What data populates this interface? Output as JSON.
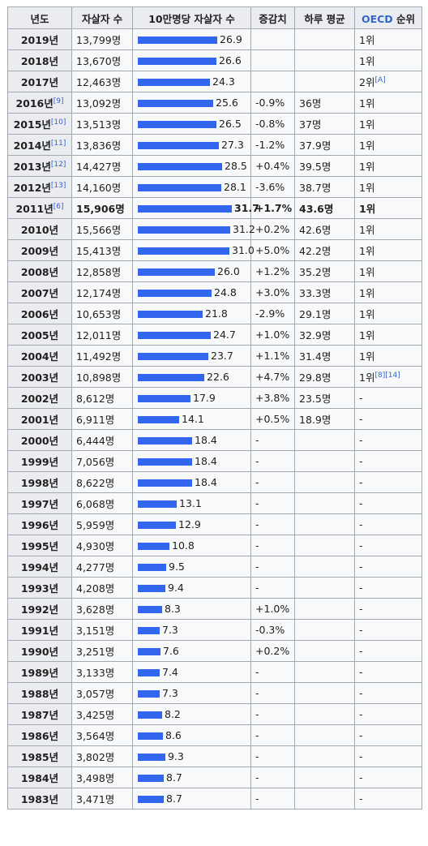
{
  "header": {
    "year": "년도",
    "count": "자살자 수",
    "rate": "10만명당 자살자 수",
    "change": "증감치",
    "daily": "하루 평균",
    "oecd_link": "OECD",
    "oecd_suffix": " 순위"
  },
  "colors": {
    "bar": "#3366ee",
    "link": "#3366cc",
    "header_bg": "#eaecf0",
    "cell_bg": "#f8f9fa",
    "border": "#a2a9b1"
  },
  "rows": [
    {
      "year": "2019년",
      "ref": "",
      "count": "13,799명",
      "rate": "26.9",
      "rate_value": 26.9,
      "change": "",
      "daily": "",
      "oecd": "1위",
      "oecd_ref": ""
    },
    {
      "year": "2018년",
      "ref": "",
      "count": "13,670명",
      "rate": "26.6",
      "rate_value": 26.6,
      "change": "",
      "daily": "",
      "oecd": "1위",
      "oecd_ref": ""
    },
    {
      "year": "2017년",
      "ref": "",
      "count": "12,463명",
      "rate": "24.3",
      "rate_value": 24.3,
      "change": "",
      "daily": "",
      "oecd": "2위",
      "oecd_ref": "[A]"
    },
    {
      "year": "2016년",
      "ref": "[9]",
      "count": "13,092명",
      "rate": "25.6",
      "rate_value": 25.6,
      "change": "-0.9%",
      "daily": "36명",
      "oecd": "1위",
      "oecd_ref": ""
    },
    {
      "year": "2015년",
      "ref": "[10]",
      "count": "13,513명",
      "rate": "26.5",
      "rate_value": 26.5,
      "change": "-0.8%",
      "daily": "37명",
      "oecd": "1위",
      "oecd_ref": ""
    },
    {
      "year": "2014년",
      "ref": "[11]",
      "count": "13,836명",
      "rate": "27.3",
      "rate_value": 27.3,
      "change": "-1.2%",
      "daily": "37.9명",
      "oecd": "1위",
      "oecd_ref": ""
    },
    {
      "year": "2013년",
      "ref": "[12]",
      "count": "14,427명",
      "rate": "28.5",
      "rate_value": 28.5,
      "change": "+0.4%",
      "daily": "39.5명",
      "oecd": "1위",
      "oecd_ref": ""
    },
    {
      "year": "2012년",
      "ref": "[13]",
      "count": "14,160명",
      "rate": "28.1",
      "rate_value": 28.1,
      "change": "-3.6%",
      "daily": "38.7명",
      "oecd": "1위",
      "oecd_ref": ""
    },
    {
      "year": "2011년",
      "ref": "[6]",
      "count": "15,906명",
      "rate": "31.7",
      "rate_value": 31.7,
      "change": "+1.7%",
      "daily": "43.6명",
      "oecd": "1위",
      "oecd_ref": "",
      "highlight": true
    },
    {
      "year": "2010년",
      "ref": "",
      "count": "15,566명",
      "rate": "31.2",
      "rate_value": 31.2,
      "change": "+0.2%",
      "daily": "42.6명",
      "oecd": "1위",
      "oecd_ref": ""
    },
    {
      "year": "2009년",
      "ref": "",
      "count": "15,413명",
      "rate": "31.0",
      "rate_value": 31.0,
      "change": "+5.0%",
      "daily": "42.2명",
      "oecd": "1위",
      "oecd_ref": ""
    },
    {
      "year": "2008년",
      "ref": "",
      "count": "12,858명",
      "rate": "26.0",
      "rate_value": 26.0,
      "change": "+1.2%",
      "daily": "35.2명",
      "oecd": "1위",
      "oecd_ref": ""
    },
    {
      "year": "2007년",
      "ref": "",
      "count": "12,174명",
      "rate": "24.8",
      "rate_value": 24.8,
      "change": "+3.0%",
      "daily": "33.3명",
      "oecd": "1위",
      "oecd_ref": ""
    },
    {
      "year": "2006년",
      "ref": "",
      "count": "10,653명",
      "rate": "21.8",
      "rate_value": 21.8,
      "change": "-2.9%",
      "daily": "29.1명",
      "oecd": "1위",
      "oecd_ref": ""
    },
    {
      "year": "2005년",
      "ref": "",
      "count": "12,011명",
      "rate": "24.7",
      "rate_value": 24.7,
      "change": "+1.0%",
      "daily": "32.9명",
      "oecd": "1위",
      "oecd_ref": ""
    },
    {
      "year": "2004년",
      "ref": "",
      "count": "11,492명",
      "rate": "23.7",
      "rate_value": 23.7,
      "change": "+1.1%",
      "daily": "31.4명",
      "oecd": "1위",
      "oecd_ref": ""
    },
    {
      "year": "2003년",
      "ref": "",
      "count": "10,898명",
      "rate": "22.6",
      "rate_value": 22.6,
      "change": "+4.7%",
      "daily": "29.8명",
      "oecd": "1위",
      "oecd_ref": "[8][14]"
    },
    {
      "year": "2002년",
      "ref": "",
      "count": "8,612명",
      "rate": "17.9",
      "rate_value": 17.9,
      "change": "+3.8%",
      "daily": "23.5명",
      "oecd": "-",
      "oecd_ref": ""
    },
    {
      "year": "2001년",
      "ref": "",
      "count": "6,911명",
      "rate": "14.1",
      "rate_value": 14.1,
      "change": "+0.5%",
      "daily": "18.9명",
      "oecd": "-",
      "oecd_ref": ""
    },
    {
      "year": "2000년",
      "ref": "",
      "count": "6,444명",
      "rate": "18.4",
      "rate_value": 18.4,
      "change": "-",
      "daily": "",
      "oecd": "-",
      "oecd_ref": ""
    },
    {
      "year": "1999년",
      "ref": "",
      "count": "7,056명",
      "rate": "18.4",
      "rate_value": 18.4,
      "change": "-",
      "daily": "",
      "oecd": "-",
      "oecd_ref": ""
    },
    {
      "year": "1998년",
      "ref": "",
      "count": "8,622명",
      "rate": "18.4",
      "rate_value": 18.4,
      "change": "-",
      "daily": "",
      "oecd": "-",
      "oecd_ref": ""
    },
    {
      "year": "1997년",
      "ref": "",
      "count": "6,068명",
      "rate": "13.1",
      "rate_value": 13.1,
      "change": "-",
      "daily": "",
      "oecd": "-",
      "oecd_ref": ""
    },
    {
      "year": "1996년",
      "ref": "",
      "count": "5,959명",
      "rate": "12.9",
      "rate_value": 12.9,
      "change": "-",
      "daily": "",
      "oecd": "-",
      "oecd_ref": ""
    },
    {
      "year": "1995년",
      "ref": "",
      "count": "4,930명",
      "rate": "10.8",
      "rate_value": 10.8,
      "change": "-",
      "daily": "",
      "oecd": "-",
      "oecd_ref": ""
    },
    {
      "year": "1994년",
      "ref": "",
      "count": "4,277명",
      "rate": "9.5",
      "rate_value": 9.5,
      "change": "-",
      "daily": "",
      "oecd": "-",
      "oecd_ref": ""
    },
    {
      "year": "1993년",
      "ref": "",
      "count": "4,208명",
      "rate": "9.4",
      "rate_value": 9.4,
      "change": "-",
      "daily": "",
      "oecd": "-",
      "oecd_ref": ""
    },
    {
      "year": "1992년",
      "ref": "",
      "count": "3,628명",
      "rate": "8.3",
      "rate_value": 8.3,
      "change": "+1.0%",
      "daily": "",
      "oecd": "-",
      "oecd_ref": ""
    },
    {
      "year": "1991년",
      "ref": "",
      "count": "3,151명",
      "rate": "7.3",
      "rate_value": 7.3,
      "change": "-0.3%",
      "daily": "",
      "oecd": "-",
      "oecd_ref": ""
    },
    {
      "year": "1990년",
      "ref": "",
      "count": "3,251명",
      "rate": "7.6",
      "rate_value": 7.6,
      "change": "+0.2%",
      "daily": "",
      "oecd": "-",
      "oecd_ref": ""
    },
    {
      "year": "1989년",
      "ref": "",
      "count": "3,133명",
      "rate": "7.4",
      "rate_value": 7.4,
      "change": "-",
      "daily": "",
      "oecd": "-",
      "oecd_ref": ""
    },
    {
      "year": "1988년",
      "ref": "",
      "count": "3,057명",
      "rate": "7.3",
      "rate_value": 7.3,
      "change": "-",
      "daily": "",
      "oecd": "-",
      "oecd_ref": ""
    },
    {
      "year": "1987년",
      "ref": "",
      "count": "3,425명",
      "rate": "8.2",
      "rate_value": 8.2,
      "change": "-",
      "daily": "",
      "oecd": "-",
      "oecd_ref": ""
    },
    {
      "year": "1986년",
      "ref": "",
      "count": "3,564명",
      "rate": "8.6",
      "rate_value": 8.6,
      "change": "-",
      "daily": "",
      "oecd": "-",
      "oecd_ref": ""
    },
    {
      "year": "1985년",
      "ref": "",
      "count": "3,802명",
      "rate": "9.3",
      "rate_value": 9.3,
      "change": "-",
      "daily": "",
      "oecd": "-",
      "oecd_ref": ""
    },
    {
      "year": "1984년",
      "ref": "",
      "count": "3,498명",
      "rate": "8.7",
      "rate_value": 8.7,
      "change": "-",
      "daily": "",
      "oecd": "-",
      "oecd_ref": ""
    },
    {
      "year": "1983년",
      "ref": "",
      "count": "3,471명",
      "rate": "8.7",
      "rate_value": 8.7,
      "change": "-",
      "daily": "",
      "oecd": "-",
      "oecd_ref": ""
    }
  ]
}
